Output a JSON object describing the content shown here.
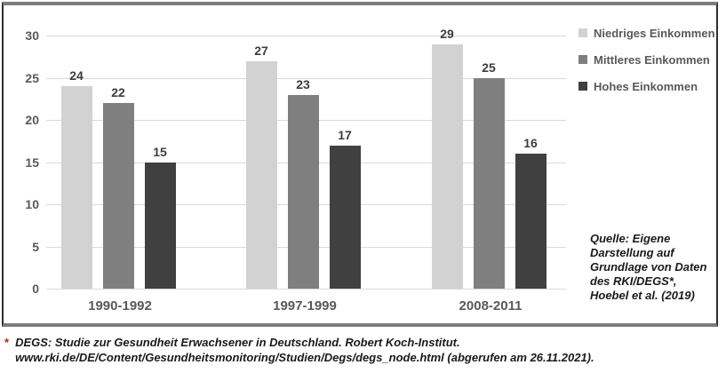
{
  "chart_data": {
    "type": "bar",
    "title": "",
    "xlabel": "",
    "ylabel": "",
    "categories": [
      "1990-1992",
      "1997-1999",
      "2008-2011"
    ],
    "series": [
      {
        "name": "Niedriges Einkommen",
        "color": "#d2d2d2",
        "values": [
          24,
          27,
          29
        ]
      },
      {
        "name": "Mittleres Einkommen",
        "color": "#7f7f7f",
        "values": [
          22,
          23,
          25
        ]
      },
      {
        "name": "Hohes Einkommen",
        "color": "#404040",
        "values": [
          15,
          17,
          16
        ]
      }
    ],
    "ylim": [
      0,
      30
    ],
    "yticks": [
      0,
      5,
      10,
      15,
      20,
      25,
      30
    ],
    "grid": true,
    "data_labels": true,
    "legend_position": "top-right"
  },
  "source_note": {
    "text": "Quelle: Eigene\nDarstellung auf\nGrundlage von Daten\ndes RKI/DEGS*,\nHoebel et al. (2019)"
  },
  "footnote": {
    "marker": "*",
    "line1": "DEGS: Studie zur Gesundheit Erwachsener in Deutschland. Robert Koch-Institut.",
    "line2": "www.rki.de/DE/Content/Gesundheitsmonitoring/Studien/Degs/degs_node.html (abgerufen am 26.11.2021)."
  },
  "colors": {
    "background": "#ffffff",
    "frame-border": "#7c7c7c",
    "frame-side": "#2e2e2e",
    "gridline": "#dadada",
    "axis-text": "#595959",
    "value-label": "#3d3d3d",
    "note-text": "#1a1a1a",
    "footnote-marker": "#b22222"
  }
}
